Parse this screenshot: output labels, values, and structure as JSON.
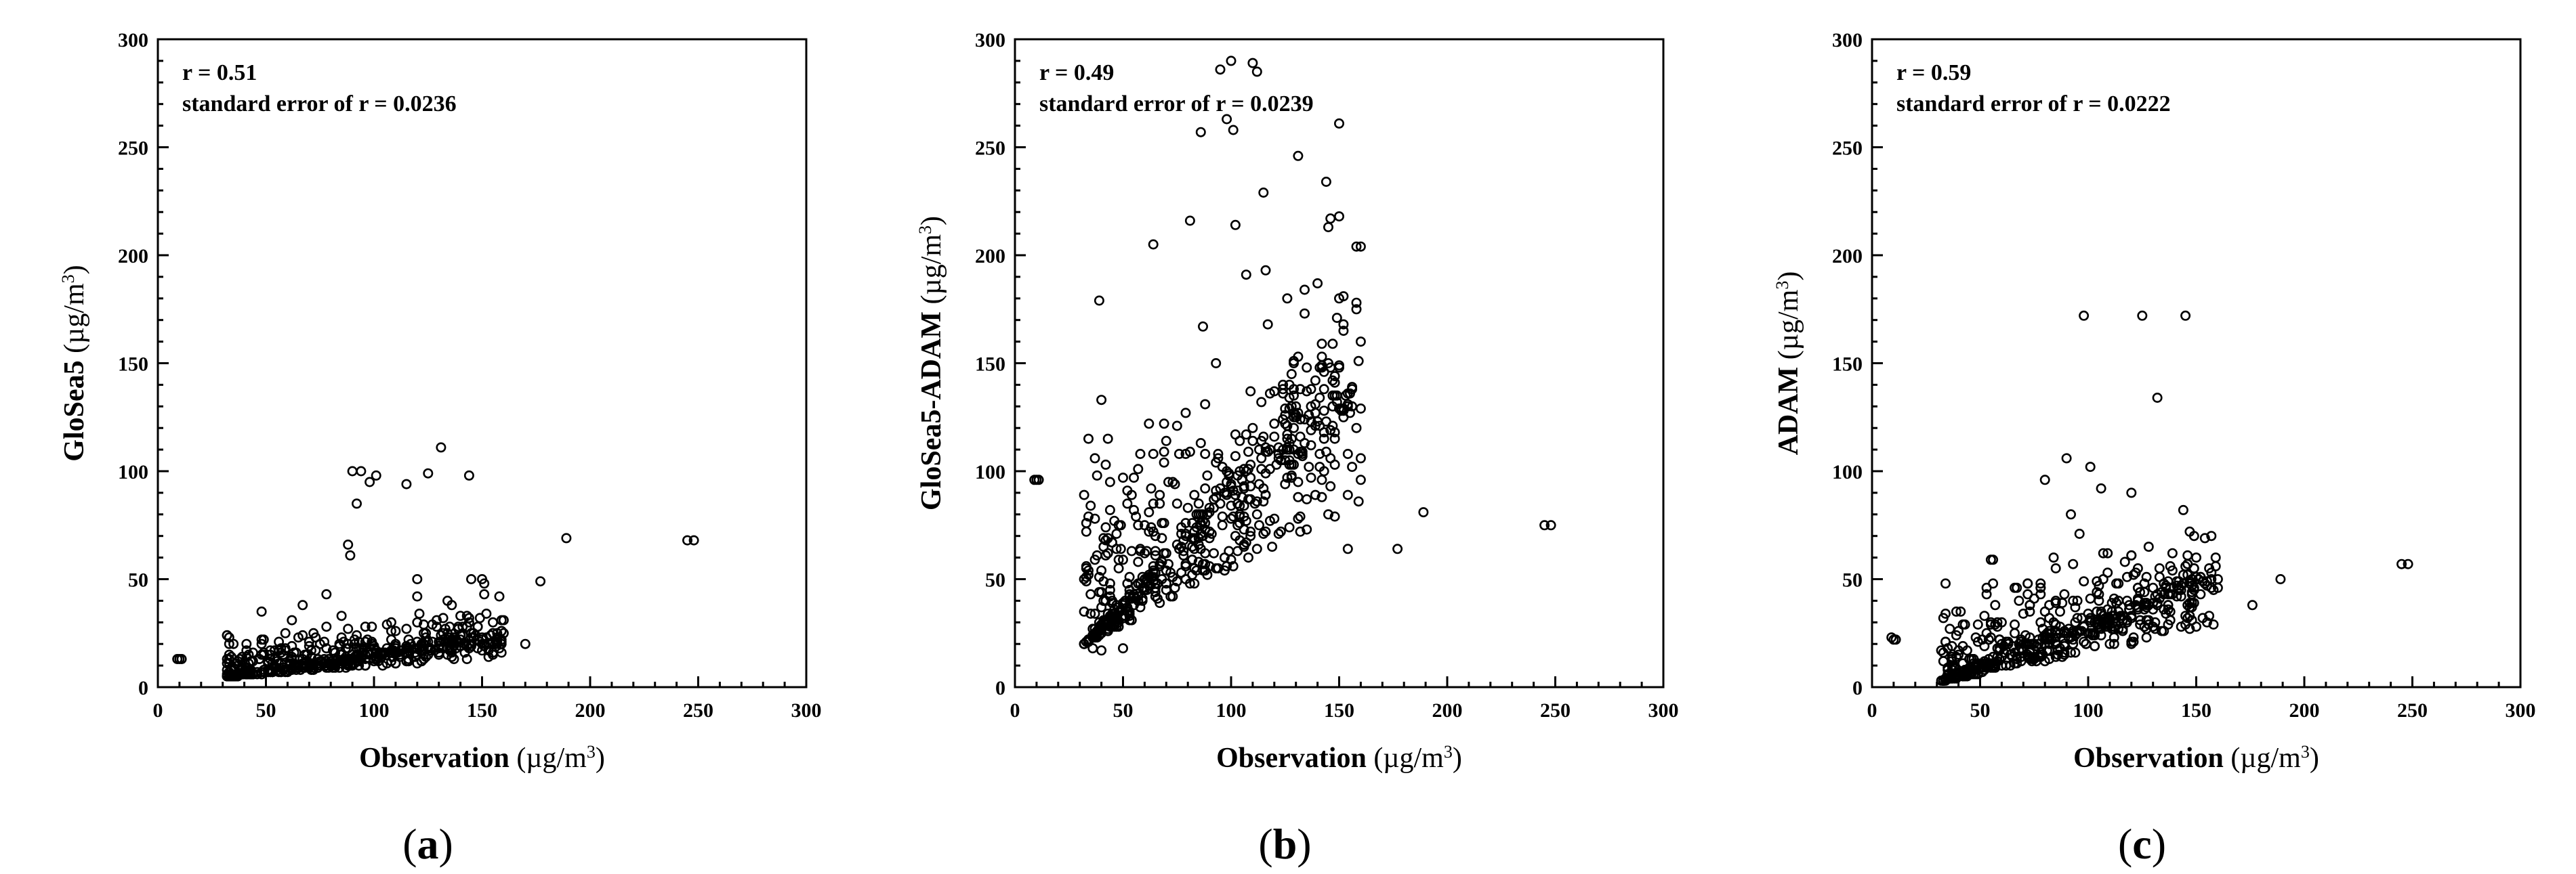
{
  "chart_data": [
    {
      "type": "scatter",
      "panel_label": "a",
      "xlabel": "Observation",
      "ylabel": "GloSea5",
      "unit_prefix": "(µg/m",
      "unit_sup": "3",
      "unit_suffix": ")",
      "xlim": [
        0,
        300
      ],
      "ylim": [
        0,
        300
      ],
      "x_ticks": [
        0,
        50,
        100,
        150,
        200,
        250,
        300
      ],
      "y_ticks": [
        0,
        50,
        100,
        150,
        200,
        250,
        300
      ],
      "r_label": "r =  0.51",
      "se_label": "standard error of r =  0.0236",
      "outliers": [
        [
          9,
          13
        ],
        [
          10,
          13
        ],
        [
          11,
          13
        ],
        [
          90,
          100
        ],
        [
          94,
          100
        ],
        [
          98,
          95
        ],
        [
          101,
          98
        ],
        [
          115,
          94
        ],
        [
          125,
          99
        ],
        [
          131,
          111
        ],
        [
          144,
          98
        ],
        [
          189,
          69
        ],
        [
          245,
          68
        ],
        [
          248,
          68
        ],
        [
          177,
          49
        ],
        [
          145,
          50
        ],
        [
          151,
          48
        ],
        [
          88,
          66
        ],
        [
          89,
          61
        ],
        [
          92,
          85
        ],
        [
          120,
          50
        ],
        [
          160,
          25
        ],
        [
          170,
          20
        ]
      ],
      "cluster": {
        "x": [
          32,
          160
        ],
        "y_base": 5,
        "slope": 0.12,
        "spread": 9,
        "n": 520,
        "seed": 11
      }
    },
    {
      "type": "scatter",
      "panel_label": "b",
      "xlabel": "Observation",
      "ylabel": "GloSea5-ADAM",
      "unit_prefix": "(µg/m",
      "unit_sup": "3",
      "unit_suffix": ")",
      "xlim": [
        0,
        300
      ],
      "ylim": [
        0,
        300
      ],
      "x_ticks": [
        0,
        50,
        100,
        150,
        200,
        250,
        300
      ],
      "y_ticks": [
        0,
        50,
        100,
        150,
        200,
        250,
        300
      ],
      "r_label": "r =  0.49",
      "se_label": "standard error of r =  0.0239",
      "outliers": [
        [
          9,
          96
        ],
        [
          10,
          96
        ],
        [
          11,
          96
        ],
        [
          95,
          286
        ],
        [
          100,
          290
        ],
        [
          110,
          289
        ],
        [
          112,
          285
        ],
        [
          98,
          263
        ],
        [
          101,
          258
        ],
        [
          86,
          257
        ],
        [
          131,
          246
        ],
        [
          115,
          229
        ],
        [
          145,
          213
        ],
        [
          102,
          214
        ],
        [
          81,
          216
        ],
        [
          189,
          81
        ],
        [
          177,
          64
        ],
        [
          154,
          64
        ],
        [
          245,
          75
        ],
        [
          248,
          75
        ],
        [
          36,
          18
        ],
        [
          40,
          17
        ],
        [
          50,
          18
        ],
        [
          160,
          160
        ],
        [
          150,
          180
        ]
      ],
      "cluster": {
        "x": [
          32,
          160
        ],
        "y_base": 20,
        "slope": 0.85,
        "spread": 38,
        "n": 620,
        "seed": 23
      }
    },
    {
      "type": "scatter",
      "panel_label": "c",
      "xlabel": "Observation",
      "ylabel": "ADAM",
      "unit_prefix": "(µg/m",
      "unit_sup": "3",
      "unit_suffix": ")",
      "xlim": [
        0,
        300
      ],
      "ylim": [
        0,
        300
      ],
      "x_ticks": [
        0,
        50,
        100,
        150,
        200,
        250,
        300
      ],
      "y_ticks": [
        0,
        50,
        100,
        150,
        200,
        250,
        300
      ],
      "r_label": "r =  0.59",
      "se_label": "standard error of r =  0.0222",
      "outliers": [
        [
          9,
          23
        ],
        [
          10,
          22
        ],
        [
          11,
          22
        ],
        [
          98,
          172
        ],
        [
          125,
          172
        ],
        [
          145,
          172
        ],
        [
          132,
          134
        ],
        [
          90,
          106
        ],
        [
          101,
          102
        ],
        [
          80,
          96
        ],
        [
          106,
          92
        ],
        [
          189,
          50
        ],
        [
          245,
          57
        ],
        [
          248,
          57
        ],
        [
          144,
          82
        ],
        [
          120,
          90
        ],
        [
          160,
          50
        ],
        [
          176,
          38
        ],
        [
          150,
          60
        ]
      ],
      "cluster": {
        "x": [
          32,
          160
        ],
        "y_base": 3,
        "slope": 0.32,
        "spread": 16,
        "n": 560,
        "seed": 37
      }
    }
  ]
}
